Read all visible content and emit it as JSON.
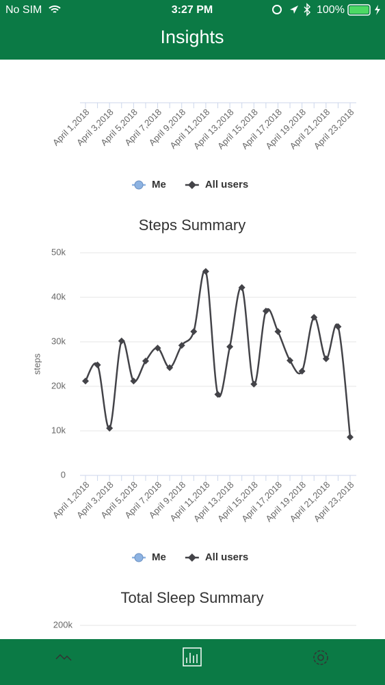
{
  "status_bar": {
    "carrier": "No SIM",
    "time": "3:27 PM",
    "battery": "100%"
  },
  "header": {
    "title": "Insights"
  },
  "chart_data": [
    {
      "type": "line",
      "categories": [
        "April 1,2018",
        null,
        "April 3,2018",
        null,
        "April 5,2018",
        null,
        "April 7,2018",
        null,
        "April 9,2018",
        null,
        "April 11,2018",
        null,
        "April 13,2018",
        null,
        "April 15,2018",
        null,
        "April 17,2018",
        null,
        "April 19,2018",
        null,
        "April 21,2018",
        null,
        "April 23,2018"
      ],
      "series": [
        {
          "name": "Me",
          "color": "#8db3e2"
        },
        {
          "name": "All users",
          "color": "#434348"
        }
      ]
    },
    {
      "type": "line",
      "title": "Steps Summary",
      "y_label": "steps",
      "categories": [
        "April 1,2018",
        null,
        "April 3,2018",
        null,
        "April 5,2018",
        null,
        "April 7,2018",
        null,
        "April 9,2018",
        null,
        "April 11,2018",
        null,
        "April 13,2018",
        null,
        "April 15,2018",
        null,
        "April 17,2018",
        null,
        "April 19,2018",
        null,
        "April 21,2018",
        null,
        "April 23,2018"
      ],
      "series": [
        {
          "name": "Me",
          "color": "#8db3e2"
        },
        {
          "name": "All users",
          "color": "#434348",
          "values": [
            21200,
            24800,
            10600,
            30200,
            21200,
            25700,
            28600,
            24200,
            29200,
            32300,
            45800,
            18200,
            28900,
            42200,
            20500,
            36900,
            32300,
            25800,
            23400,
            35500,
            26200,
            33400,
            8600
          ]
        }
      ],
      "ylim": [
        0,
        50000
      ],
      "yticks": [
        0,
        {
          "value": 10000,
          "label": "10k"
        },
        {
          "value": 20000,
          "label": "20k"
        },
        {
          "value": 30000,
          "label": "30k"
        },
        {
          "value": 40000,
          "label": "40k"
        },
        {
          "value": 50000,
          "label": "50k"
        }
      ],
      "grid": true
    },
    {
      "type": "line",
      "title": "Total Sleep Summary",
      "yticks": [
        {
          "value": 200000,
          "label": "200k"
        }
      ],
      "grid": true
    }
  ],
  "tab_bar": {
    "items": [
      "Track",
      "Insights",
      "Settings"
    ]
  }
}
